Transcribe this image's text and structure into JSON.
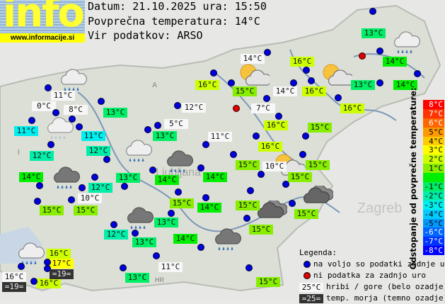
{
  "header": {
    "logo_text": "info",
    "logo_url": "www.informacije.si",
    "date_line": "Datum: 21.10.2025 ura: 15:50",
    "avg_line": "Povprečna temperatura: 14°C",
    "source_line": "Vir podatkov: ARSO"
  },
  "average_temperature": 14,
  "map_labels": [
    "A",
    "I",
    "HR",
    "Ljubljana",
    "Zagreb"
  ],
  "stations": [
    {
      "t": 13
    },
    {
      "t": 14
    },
    {
      "t": 14
    },
    {
      "t": 13
    },
    {
      "t": 14,
      "mountain": true
    },
    {
      "t": 16
    },
    {
      "t": 15
    },
    {
      "t": 16
    },
    {
      "t": 14,
      "mountain": true
    },
    {
      "t": 16
    },
    {
      "t": 7,
      "mountain": true
    },
    {
      "t": 16
    },
    {
      "t": 16
    },
    {
      "t": 16
    },
    {
      "t": 15
    },
    {
      "t": 11,
      "mountain": true
    },
    {
      "t": 13
    },
    {
      "t": 0,
      "mountain": true
    },
    {
      "t": 8,
      "mountain": true
    },
    {
      "t": 11
    },
    {
      "t": 11
    },
    {
      "t": 12,
      "mountain": true
    },
    {
      "t": 5,
      "mountain": true
    },
    {
      "t": 13
    },
    {
      "t": 11,
      "mountain": true
    },
    {
      "t": 12
    },
    {
      "t": 12
    },
    {
      "t": 14
    },
    {
      "t": 15
    },
    {
      "t": 12
    },
    {
      "t": 13
    },
    {
      "t": 10,
      "mountain": true
    },
    {
      "t": 15
    },
    {
      "t": 14
    },
    {
      "t": 12
    },
    {
      "t": 13
    },
    {
      "t": 15
    },
    {
      "t": 13
    },
    {
      "t": 14
    },
    {
      "t": 14
    },
    {
      "t": 14
    },
    {
      "t": 11,
      "mountain": true
    },
    {
      "t": 13
    },
    {
      "t": 16,
      "mountain": true
    },
    {
      "t": 16
    },
    {
      "t": 17
    },
    {
      "t": 16
    },
    {
      "t": 15
    },
    {
      "t": 15
    },
    {
      "t": 10,
      "mountain": true
    },
    {
      "t": 15
    },
    {
      "t": 15
    },
    {
      "t": 15
    },
    {
      "t": 15
    },
    {
      "t": 15
    }
  ],
  "sea_temperatures": [
    "=19=",
    "=19="
  ],
  "stations_no_data_count": 2,
  "weather_icons": [
    "rain-cloud-icon",
    "cloud-light-rain-icon",
    "sun-cloud-icon",
    "sun-cloud-icon",
    "rain-cloud-icon",
    "rain-cloud-icon",
    "dark-rain-cloud-icon",
    "dark-rain-cloud-icon",
    "sun-cloud-icon",
    "dark-cloud-icon",
    "dark-cloud-icon",
    "dark-rain-cloud-icon",
    "dark-rain-cloud-icon",
    "rain-cloud-icon"
  ],
  "scale": {
    "title": "Odstopanje od povprečne temperature:",
    "rows": [
      {
        "label": "8°C",
        "color": "#ff0000",
        "text": "#ffffff"
      },
      {
        "label": "7°C",
        "color": "#ff3300",
        "text": "#ffffff"
      },
      {
        "label": "6°C",
        "color": "#ff6600",
        "text": "#ffffff"
      },
      {
        "label": "5°C",
        "color": "#ff9900",
        "text": "#000000"
      },
      {
        "label": "4°C",
        "color": "#ffcc00",
        "text": "#000000"
      },
      {
        "label": "3°C",
        "color": "#ffff00",
        "text": "#000000"
      },
      {
        "label": "2°C",
        "color": "#ccff00",
        "text": "#000000"
      },
      {
        "label": "1°C",
        "color": "#88ee00",
        "text": "#000000"
      },
      {
        "label": "",
        "color": "#00ee00",
        "text": "#000000"
      },
      {
        "label": "-1°C",
        "color": "#00ee66",
        "text": "#000000"
      },
      {
        "label": "-2°C",
        "color": "#00eeaa",
        "text": "#000000"
      },
      {
        "label": "-3°C",
        "color": "#00eeee",
        "text": "#000000"
      },
      {
        "label": "-4°C",
        "color": "#00ccff",
        "text": "#000000"
      },
      {
        "label": "-5°C",
        "color": "#0099ff",
        "text": "#000000"
      },
      {
        "label": "-6°C",
        "color": "#0066ff",
        "text": "#ffffff"
      },
      {
        "label": "-7°C",
        "color": "#0033ff",
        "text": "#ffffff"
      },
      {
        "label": "-8°C",
        "color": "#0000ff",
        "text": "#ffffff"
      }
    ]
  },
  "legend": {
    "title": "Legenda:",
    "blue_dot": "na voljo so podatki zadnje ure",
    "red_dot": "ni podatka za zadnjo uro",
    "mountain_sample": "25°C",
    "mountain_text": "hribi / gore (belo ozadje)",
    "sea_sample": "=25=",
    "sea_text": "temp. morja (temno ozadje)"
  }
}
